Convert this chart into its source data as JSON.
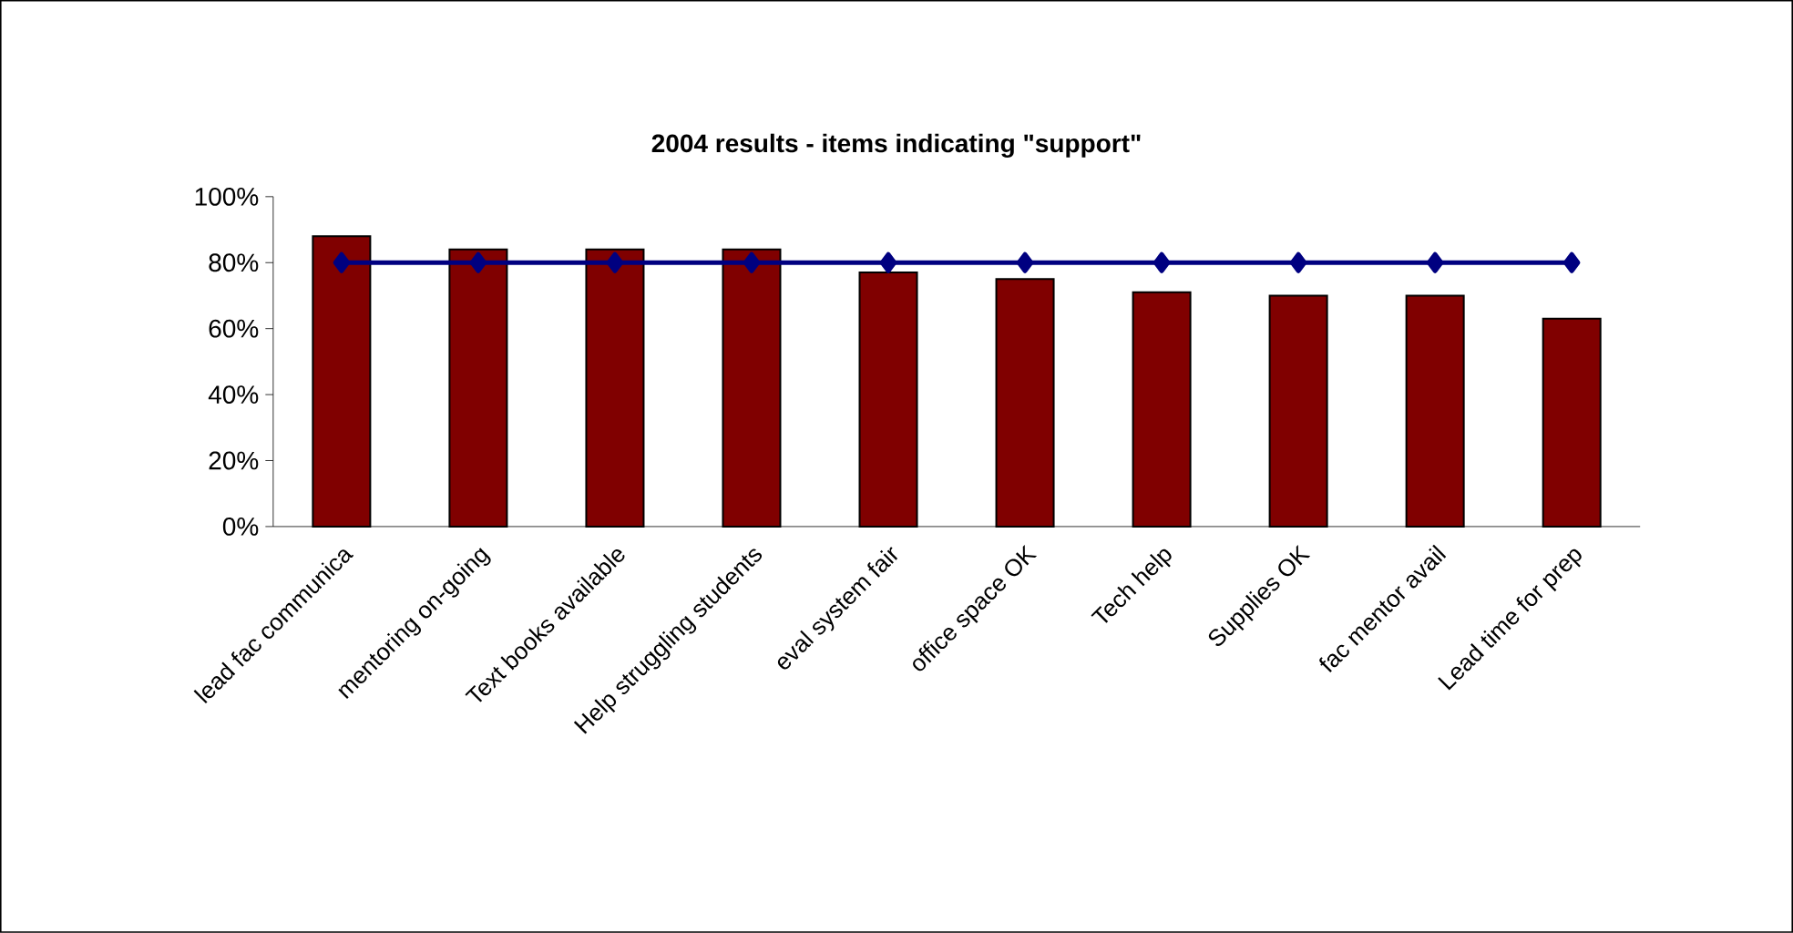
{
  "chart_data": {
    "type": "bar",
    "title": "2004 results - items indicating \"support\"",
    "categories": [
      "lead fac communica",
      "mentoring on-going",
      "Text books available",
      "Help struggling students",
      "eval system fair",
      "office space OK",
      "Tech help",
      "Supplies OK",
      "fac mentor avail",
      "Lead time for prep"
    ],
    "series": [
      {
        "color": "#800000",
        "values": [
          88,
          84,
          84,
          84,
          77,
          75,
          71,
          70,
          70,
          63
        ]
      },
      {
        "type": "line",
        "color": "#000080",
        "marker": "diamond",
        "values": [
          80,
          80,
          80,
          80,
          80,
          80,
          80,
          80,
          80,
          80
        ]
      }
    ],
    "ylim": [
      0,
      100
    ],
    "yticks": [
      {
        "value": 0,
        "label": "0%"
      },
      {
        "value": 20,
        "label": "20%"
      },
      {
        "value": 40,
        "label": "40%"
      },
      {
        "value": 60,
        "label": "60%"
      },
      {
        "value": 80,
        "label": "80%"
      },
      {
        "value": 100,
        "label": "100%"
      }
    ],
    "grid": false
  }
}
